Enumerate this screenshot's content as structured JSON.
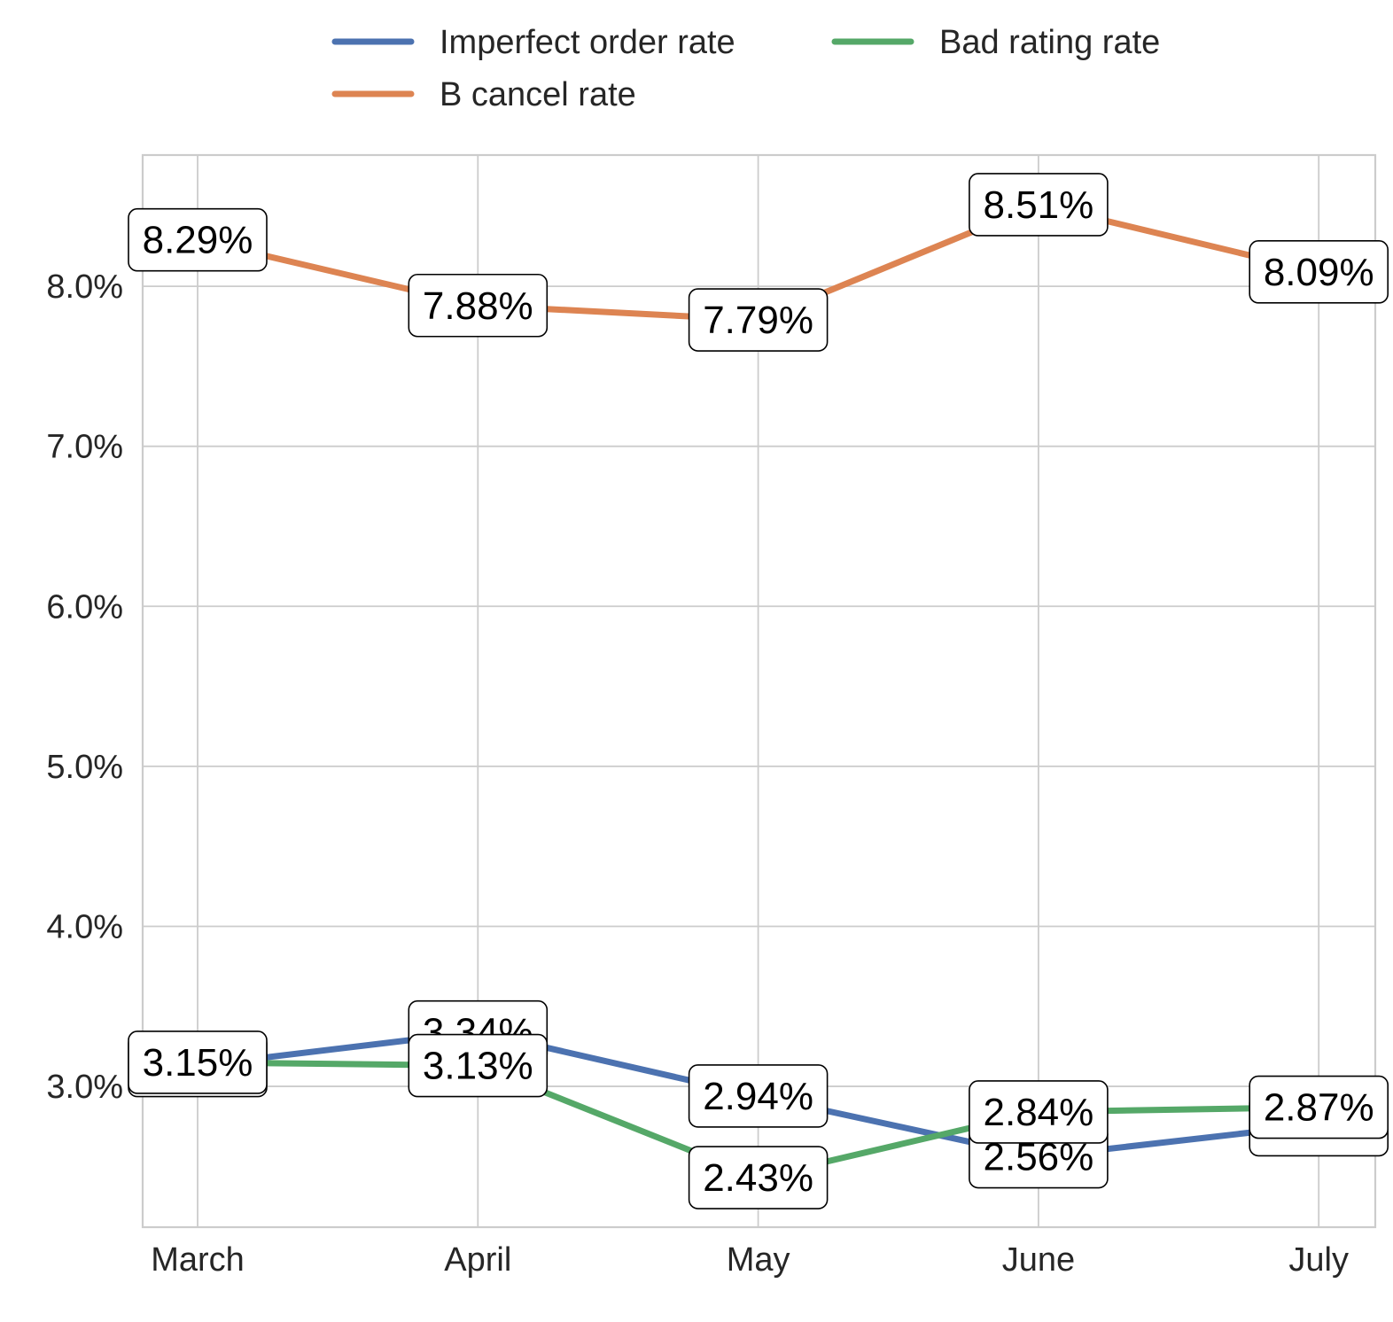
{
  "chart_data": {
    "type": "line",
    "categories": [
      "March",
      "April",
      "May",
      "June",
      "July"
    ],
    "series": [
      {
        "name": "Imperfect order rate",
        "color": "#4c72b0",
        "values": [
          3.13,
          3.34,
          2.94,
          2.56,
          2.76
        ],
        "labels": [
          "",
          "3.34%",
          "2.94%",
          "2.56%",
          ""
        ]
      },
      {
        "name": "B cancel rate",
        "color": "#dd8452",
        "values": [
          8.29,
          7.88,
          7.79,
          8.51,
          8.09
        ],
        "labels": [
          "8.29%",
          "7.88%",
          "7.79%",
          "8.51%",
          "8.09%"
        ]
      },
      {
        "name": "Bad rating rate",
        "color": "#55a868",
        "values": [
          3.15,
          3.13,
          2.43,
          2.84,
          2.87
        ],
        "labels": [
          "3.15%",
          "3.13%",
          "2.43%",
          "2.84%",
          "2.87%"
        ]
      }
    ],
    "y_ticks": [
      3.0,
      4.0,
      5.0,
      6.0,
      7.0,
      8.0
    ],
    "y_tick_labels": [
      "3.0%",
      "4.0%",
      "5.0%",
      "6.0%",
      "7.0%",
      "8.0%"
    ],
    "ylim": [
      2.12,
      8.82
    ],
    "grid": true,
    "legend_position": "top-center",
    "title": "",
    "xlabel": "",
    "ylabel": ""
  }
}
